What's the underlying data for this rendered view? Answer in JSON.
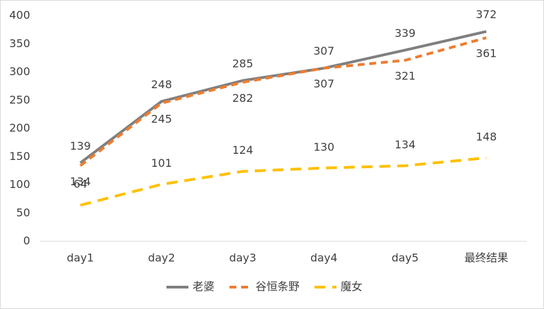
{
  "chart_data": {
    "type": "line",
    "categories": [
      "day1",
      "day2",
      "day3",
      "day4",
      "day5",
      "最终结果"
    ],
    "series": [
      {
        "name": "老婆",
        "color": "#7f7f7f",
        "dash": "solid",
        "values": [
          139,
          248,
          285,
          307,
          339,
          372
        ]
      },
      {
        "name": "谷恒条野",
        "color": "#ed7d31",
        "dash": "dashed",
        "values": [
          134,
          245,
          282,
          307,
          321,
          361
        ]
      },
      {
        "name": "魔女",
        "color": "#ffc000",
        "dash": "dashed",
        "values": [
          64,
          101,
          124,
          130,
          134,
          148
        ]
      }
    ],
    "ylim": [
      0,
      400
    ],
    "yticks": [
      0,
      50,
      100,
      150,
      200,
      250,
      300,
      350,
      400
    ],
    "grid": false,
    "legend": "bottom"
  }
}
